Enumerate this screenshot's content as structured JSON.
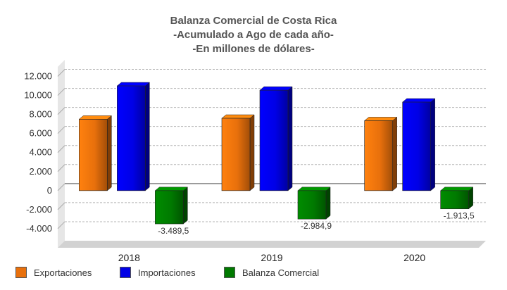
{
  "chart_data": {
    "type": "bar",
    "title_lines": [
      "Balanza Comercial de Costa Rica",
      "-Acumulado a Ago de cada año-",
      "-En millones de dólares-"
    ],
    "categories": [
      "2018",
      "2019",
      "2020"
    ],
    "series": [
      {
        "name": "Exportaciones",
        "color": "#e8700c",
        "values": [
          7500,
          7600,
          7350
        ]
      },
      {
        "name": "Importaciones",
        "color": "#0000e6",
        "values": [
          11000,
          10550,
          9300
        ]
      },
      {
        "name": "Balanza Comercial",
        "color": "#007a00",
        "values": [
          -3489.5,
          -2984.9,
          -1913.5
        ]
      }
    ],
    "data_labels": {
      "series": "Balanza Comercial",
      "text": [
        "-3.489,5",
        "-2.984,9",
        "-1.913,5"
      ]
    },
    "y_ticks": [
      "12.000",
      "10.000",
      "8.000",
      "6.000",
      "4.000",
      "2.000",
      "0",
      "-2.000",
      "-4.000"
    ],
    "y_tick_values": [
      12000,
      10000,
      8000,
      6000,
      4000,
      2000,
      0,
      -2000,
      -4000
    ],
    "ylim": [
      -6000,
      13000
    ],
    "grid": true,
    "legend_position": "bottom"
  }
}
